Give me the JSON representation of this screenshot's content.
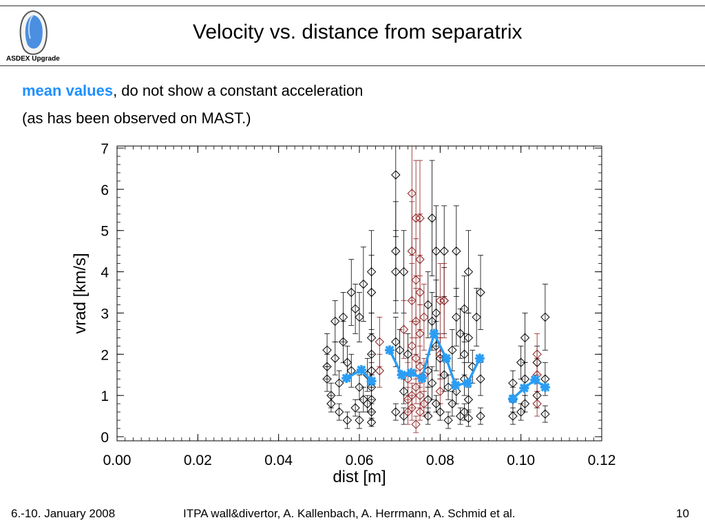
{
  "header": {
    "logo_text": "ASDEX Upgrade",
    "title": "Velocity vs. distance from separatrix"
  },
  "subtitle": {
    "highlight": "mean values",
    "rest_line1": ", do not show a constant acceleration",
    "line2": "(as has been observed on MAST.)"
  },
  "footer": {
    "left": "6.-10. January 2008",
    "center": "ITPA wall&divertor, A. Kallenbach,  A. Herrmann, A. Schmid et al.",
    "page": "10"
  },
  "colors": {
    "mean": "#2a9df4",
    "black_series": "#000000",
    "red_series": "#8b1a1a",
    "highlight": "#1e90ff"
  },
  "chart_data": {
    "type": "scatter",
    "xlabel": "dist [m]",
    "ylabel": "vrad [km/s]",
    "xlim": [
      0.0,
      0.12
    ],
    "ylim": [
      -0.1,
      7.05
    ],
    "xticks": [
      "0.00",
      "0.02",
      "0.04",
      "0.06",
      "0.08",
      "0.10",
      "0.12"
    ],
    "yticks": [
      "0",
      "1",
      "2",
      "3",
      "4",
      "5",
      "6",
      "7"
    ],
    "series": [
      {
        "marker": "diamond",
        "color": "black",
        "points": [
          {
            "x": 0.052,
            "y": 2.1,
            "err": 0.4
          },
          {
            "x": 0.052,
            "y": 1.7,
            "err": 0.3
          },
          {
            "x": 0.052,
            "y": 1.4,
            "err": 0.3
          },
          {
            "x": 0.053,
            "y": 1.0,
            "err": 0.3
          },
          {
            "x": 0.053,
            "y": 0.8,
            "err": 0.2
          },
          {
            "x": 0.054,
            "y": 2.8,
            "err": 0.5
          },
          {
            "x": 0.054,
            "y": 1.9,
            "err": 0.4
          },
          {
            "x": 0.055,
            "y": 1.3,
            "err": 0.3
          },
          {
            "x": 0.055,
            "y": 0.6,
            "err": 0.2
          },
          {
            "x": 0.056,
            "y": 2.9,
            "err": 0.6
          },
          {
            "x": 0.056,
            "y": 2.3,
            "err": 0.5
          },
          {
            "x": 0.057,
            "y": 1.8,
            "err": 0.4
          },
          {
            "x": 0.057,
            "y": 0.4,
            "err": 0.2
          },
          {
            "x": 0.058,
            "y": 3.5,
            "err": 0.8
          },
          {
            "x": 0.058,
            "y": 1.6,
            "err": 0.4
          },
          {
            "x": 0.059,
            "y": 3.1,
            "err": 0.6
          },
          {
            "x": 0.059,
            "y": 0.7,
            "err": 0.2
          },
          {
            "x": 0.06,
            "y": 2.9,
            "err": 0.6
          },
          {
            "x": 0.06,
            "y": 1.2,
            "err": 0.3
          },
          {
            "x": 0.06,
            "y": 0.4,
            "err": 0.2
          },
          {
            "x": 0.061,
            "y": 3.7,
            "err": 0.9
          },
          {
            "x": 0.061,
            "y": 0.9,
            "err": 0.3
          },
          {
            "x": 0.062,
            "y": 1.5,
            "err": 0.4
          },
          {
            "x": 0.062,
            "y": 0.8,
            "err": 0.2
          },
          {
            "x": 0.063,
            "y": 4.0,
            "err": 1.0
          },
          {
            "x": 0.063,
            "y": 3.5,
            "err": 0.9
          },
          {
            "x": 0.063,
            "y": 2.4,
            "err": 0.6
          },
          {
            "x": 0.063,
            "y": 2.0,
            "err": 0.5
          },
          {
            "x": 0.063,
            "y": 1.6,
            "err": 0.4
          },
          {
            "x": 0.063,
            "y": 1.2,
            "err": 0.3
          },
          {
            "x": 0.063,
            "y": 0.9,
            "err": 0.3
          },
          {
            "x": 0.063,
            "y": 0.6,
            "err": 0.2
          },
          {
            "x": 0.063,
            "y": 0.35,
            "err": 0.1
          },
          {
            "x": 0.069,
            "y": 6.35,
            "err": 1.5
          },
          {
            "x": 0.069,
            "y": 4.5,
            "err": 1.2
          },
          {
            "x": 0.069,
            "y": 4.0,
            "err": 1.0
          },
          {
            "x": 0.069,
            "y": 2.3,
            "err": 0.6
          },
          {
            "x": 0.069,
            "y": 0.6,
            "err": 0.2
          },
          {
            "x": 0.07,
            "y": 2.1,
            "err": 0.5
          },
          {
            "x": 0.071,
            "y": 4.0,
            "err": 1.0
          },
          {
            "x": 0.071,
            "y": 1.1,
            "err": 0.3
          },
          {
            "x": 0.071,
            "y": 0.5,
            "err": 0.2
          },
          {
            "x": 0.072,
            "y": 2.0,
            "err": 0.5
          },
          {
            "x": 0.077,
            "y": 3.2,
            "err": 0.8
          },
          {
            "x": 0.077,
            "y": 1.6,
            "err": 0.4
          },
          {
            "x": 0.077,
            "y": 0.9,
            "err": 0.3
          },
          {
            "x": 0.077,
            "y": 0.5,
            "err": 0.2
          },
          {
            "x": 0.078,
            "y": 5.3,
            "err": 1.4
          },
          {
            "x": 0.078,
            "y": 2.8,
            "err": 0.7
          },
          {
            "x": 0.078,
            "y": 1.3,
            "err": 0.4
          },
          {
            "x": 0.079,
            "y": 4.5,
            "err": 1.1
          },
          {
            "x": 0.079,
            "y": 3.0,
            "err": 0.8
          },
          {
            "x": 0.079,
            "y": 2.2,
            "err": 0.6
          },
          {
            "x": 0.079,
            "y": 0.8,
            "err": 0.2
          },
          {
            "x": 0.08,
            "y": 1.9,
            "err": 0.5
          },
          {
            "x": 0.08,
            "y": 0.6,
            "err": 0.2
          },
          {
            "x": 0.081,
            "y": 4.5,
            "err": 1.1
          },
          {
            "x": 0.081,
            "y": 3.3,
            "err": 0.8
          },
          {
            "x": 0.081,
            "y": 1.5,
            "err": 0.4
          },
          {
            "x": 0.082,
            "y": 1.2,
            "err": 0.3
          },
          {
            "x": 0.082,
            "y": 0.4,
            "err": 0.2
          },
          {
            "x": 0.083,
            "y": 2.1,
            "err": 0.5
          },
          {
            "x": 0.083,
            "y": 0.8,
            "err": 0.3
          },
          {
            "x": 0.084,
            "y": 4.5,
            "err": 1.1
          },
          {
            "x": 0.084,
            "y": 2.9,
            "err": 0.7
          },
          {
            "x": 0.084,
            "y": 1.1,
            "err": 0.3
          },
          {
            "x": 0.085,
            "y": 2.5,
            "err": 0.6
          },
          {
            "x": 0.085,
            "y": 0.5,
            "err": 0.2
          },
          {
            "x": 0.086,
            "y": 3.1,
            "err": 0.8
          },
          {
            "x": 0.086,
            "y": 2.0,
            "err": 0.5
          },
          {
            "x": 0.086,
            "y": 1.4,
            "err": 0.4
          },
          {
            "x": 0.086,
            "y": 0.6,
            "err": 0.2
          },
          {
            "x": 0.087,
            "y": 4.0,
            "err": 1.0
          },
          {
            "x": 0.087,
            "y": 2.4,
            "err": 0.6
          },
          {
            "x": 0.087,
            "y": 0.9,
            "err": 0.3
          },
          {
            "x": 0.087,
            "y": 0.45,
            "err": 0.2
          },
          {
            "x": 0.088,
            "y": 1.7,
            "err": 0.4
          },
          {
            "x": 0.089,
            "y": 2.9,
            "err": 0.7
          },
          {
            "x": 0.09,
            "y": 3.5,
            "err": 0.9
          },
          {
            "x": 0.09,
            "y": 1.4,
            "err": 0.4
          },
          {
            "x": 0.09,
            "y": 0.5,
            "err": 0.2
          },
          {
            "x": 0.098,
            "y": 1.3,
            "err": 0.3
          },
          {
            "x": 0.098,
            "y": 0.9,
            "err": 0.3
          },
          {
            "x": 0.098,
            "y": 0.5,
            "err": 0.2
          },
          {
            "x": 0.1,
            "y": 1.8,
            "err": 0.4
          },
          {
            "x": 0.1,
            "y": 0.6,
            "err": 0.2
          },
          {
            "x": 0.101,
            "y": 2.4,
            "err": 0.6
          },
          {
            "x": 0.101,
            "y": 1.4,
            "err": 0.4
          },
          {
            "x": 0.101,
            "y": 0.8,
            "err": 0.2
          },
          {
            "x": 0.104,
            "y": 1.8,
            "err": 0.4
          },
          {
            "x": 0.104,
            "y": 1.0,
            "err": 0.3
          },
          {
            "x": 0.106,
            "y": 2.9,
            "err": 0.8
          },
          {
            "x": 0.106,
            "y": 1.4,
            "err": 0.4
          },
          {
            "x": 0.106,
            "y": 0.55,
            "err": 0.2
          }
        ]
      },
      {
        "marker": "diamond",
        "color": "red",
        "points": [
          {
            "x": 0.065,
            "y": 2.3,
            "err": 0.6
          },
          {
            "x": 0.065,
            "y": 1.6,
            "err": 0.4
          },
          {
            "x": 0.071,
            "y": 2.6,
            "err": 0.7
          },
          {
            "x": 0.072,
            "y": 1.4,
            "err": 0.4
          },
          {
            "x": 0.072,
            "y": 0.9,
            "err": 0.3
          },
          {
            "x": 0.072,
            "y": 0.6,
            "err": 0.3
          },
          {
            "x": 0.073,
            "y": 5.9,
            "err": 1.5
          },
          {
            "x": 0.073,
            "y": 4.5,
            "err": 1.2
          },
          {
            "x": 0.073,
            "y": 3.3,
            "err": 0.9
          },
          {
            "x": 0.073,
            "y": 2.2,
            "err": 0.6
          },
          {
            "x": 0.073,
            "y": 1.0,
            "err": 0.3
          },
          {
            "x": 0.073,
            "y": 0.7,
            "err": 0.3
          },
          {
            "x": 0.074,
            "y": 5.3,
            "err": 1.4
          },
          {
            "x": 0.074,
            "y": 3.8,
            "err": 1.0
          },
          {
            "x": 0.074,
            "y": 2.8,
            "err": 0.8
          },
          {
            "x": 0.074,
            "y": 1.9,
            "err": 0.5
          },
          {
            "x": 0.074,
            "y": 1.2,
            "err": 0.4
          },
          {
            "x": 0.074,
            "y": 0.3,
            "err": 0.2
          },
          {
            "x": 0.075,
            "y": 5.3,
            "err": 1.4
          },
          {
            "x": 0.075,
            "y": 4.3,
            "err": 1.1
          },
          {
            "x": 0.075,
            "y": 3.5,
            "err": 0.9
          },
          {
            "x": 0.075,
            "y": 2.5,
            "err": 0.7
          },
          {
            "x": 0.075,
            "y": 1.7,
            "err": 0.5
          },
          {
            "x": 0.075,
            "y": 1.0,
            "err": 0.3
          },
          {
            "x": 0.075,
            "y": 0.6,
            "err": 0.2
          },
          {
            "x": 0.076,
            "y": 2.9,
            "err": 0.8
          },
          {
            "x": 0.076,
            "y": 1.5,
            "err": 0.4
          },
          {
            "x": 0.076,
            "y": 0.8,
            "err": 0.3
          },
          {
            "x": 0.08,
            "y": 3.3,
            "err": 0.9
          },
          {
            "x": 0.08,
            "y": 2.0,
            "err": 0.5
          },
          {
            "x": 0.08,
            "y": 1.1,
            "err": 0.3
          },
          {
            "x": 0.081,
            "y": 3.3,
            "err": 0.9
          },
          {
            "x": 0.104,
            "y": 2.0,
            "err": 0.5
          },
          {
            "x": 0.104,
            "y": 1.5,
            "err": 0.4
          },
          {
            "x": 0.104,
            "y": 0.8,
            "err": 0.3
          }
        ]
      },
      {
        "marker": "asterisk",
        "color": "blue",
        "points": [
          {
            "x": 0.0568,
            "y": 1.42
          },
          {
            "x": 0.0605,
            "y": 1.62
          },
          {
            "x": 0.063,
            "y": 1.35
          },
          {
            "x": 0.0675,
            "y": 2.1
          },
          {
            "x": 0.0705,
            "y": 1.5
          },
          {
            "x": 0.0728,
            "y": 1.55
          },
          {
            "x": 0.0755,
            "y": 1.42
          },
          {
            "x": 0.0785,
            "y": 2.5
          },
          {
            "x": 0.0815,
            "y": 1.9
          },
          {
            "x": 0.0838,
            "y": 1.25
          },
          {
            "x": 0.0868,
            "y": 1.3
          },
          {
            "x": 0.0898,
            "y": 1.9
          }
        ],
        "segments": [
          [
            0,
            2
          ],
          [
            3,
            11
          ]
        ]
      },
      {
        "marker": "asterisk",
        "color": "blue",
        "points": [
          {
            "x": 0.098,
            "y": 0.92
          },
          {
            "x": 0.1008,
            "y": 1.18
          },
          {
            "x": 0.1035,
            "y": 1.38
          },
          {
            "x": 0.106,
            "y": 1.2
          }
        ],
        "segments": [
          [
            0,
            3
          ]
        ]
      }
    ]
  }
}
